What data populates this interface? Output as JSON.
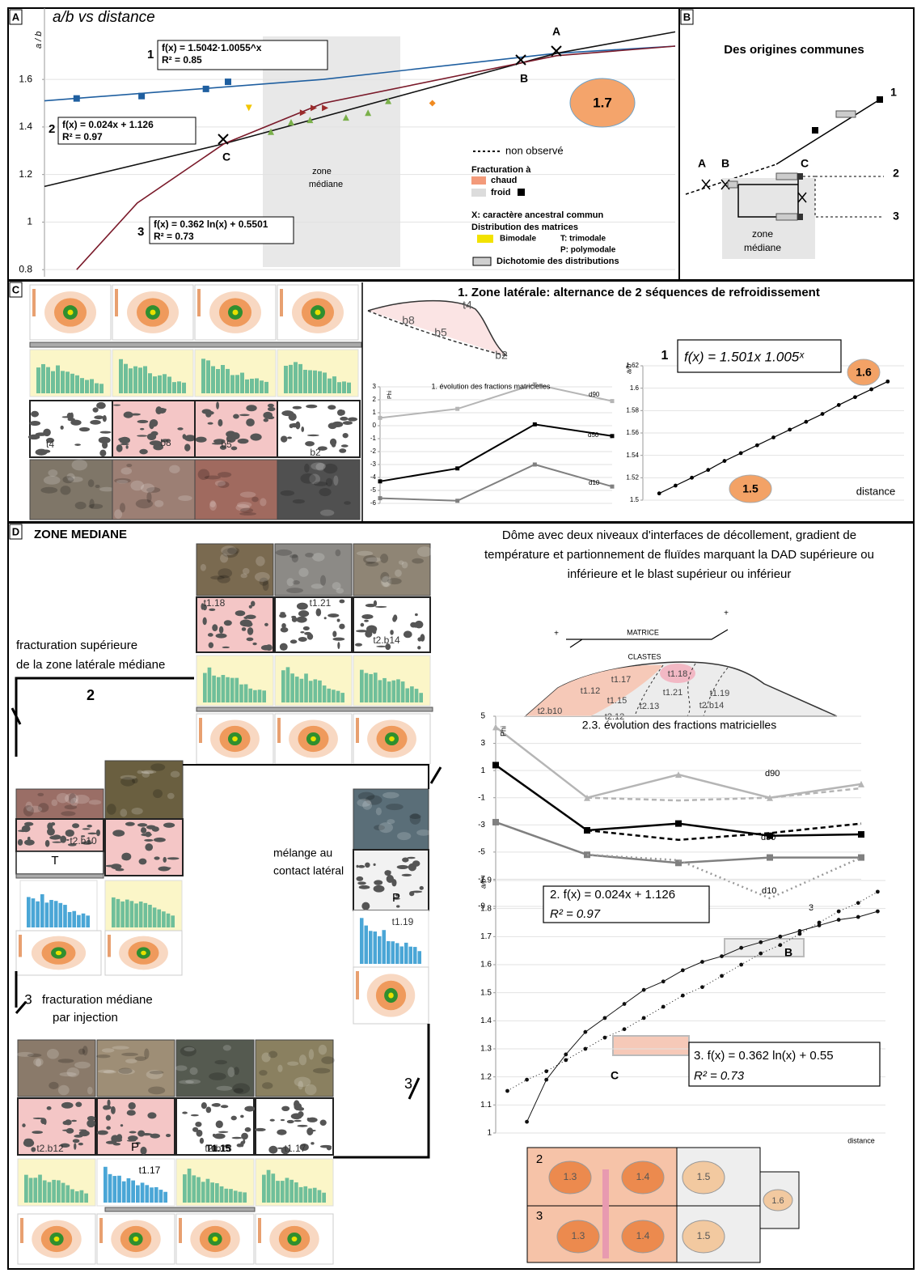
{
  "panel_a": {
    "letter": "A",
    "title": "a/b vs distance",
    "y_label": "a / b",
    "fits": [
      {
        "number": "1",
        "equation": "f(x) = 1.5042·1.0055^x",
        "r2": "R² = 0.85"
      },
      {
        "number": "2",
        "equation": "f(x) = 0.024x + 1.126",
        "r2": "R² = 0.97"
      },
      {
        "number": "3",
        "equation": "f(x) = 0.362 ln(x) + 0.5501",
        "r2": "R² = 0.73"
      }
    ],
    "points": [
      "A",
      "B",
      "C"
    ],
    "zone": [
      "zone",
      "médiane"
    ],
    "clast_value": "1.7",
    "legend": {
      "unobserved": "non observé",
      "fracturation": "Fracturation à",
      "hot": "chaud",
      "cold": "froid",
      "ancestral": "X: caractère ancestral commun",
      "distribution": "Distribution des matrices",
      "bimodal": "Bimodale",
      "trimodal": "T: trimodale",
      "polymodal": "P: polymodale",
      "dichotomy": "Dichotomie des distributions"
    },
    "chart": {
      "type": "scatter",
      "xlim": [
        0,
        100
      ],
      "ylim": [
        0.77,
        1.9
      ],
      "yticks": [
        0.8,
        1,
        1.2,
        1.4,
        1.6
      ],
      "grid": true,
      "series": [
        {
          "color": "#1f5fa0",
          "line": true,
          "x": [
            0,
            44.2,
            81.2,
            100
          ],
          "values": [
            1.51,
            1.6,
            1.71,
            1.74
          ]
        },
        {
          "color": "#111111",
          "line": true,
          "x": [
            0,
            28.5,
            81.2,
            100
          ],
          "values": [
            1.15,
            1.33,
            1.71,
            1.8
          ]
        },
        {
          "color": "#7a1a2a",
          "line": true,
          "x": [
            5.1,
            14.7,
            28.5,
            44.2,
            81.2,
            100
          ],
          "values": [
            0.8,
            1.08,
            1.33,
            1.5,
            1.7,
            1.74
          ]
        },
        {
          "color": "#1f5fa0",
          "marker": "square",
          "x": [
            5.1,
            15.4,
            25.6,
            29.1
          ],
          "values": [
            1.52,
            1.53,
            1.56,
            1.59
          ]
        },
        {
          "color": "#9b2b2b",
          "marker": "triangle-right",
          "x": [
            41.0,
            42.7,
            44.5
          ],
          "values": [
            1.46,
            1.48,
            1.48
          ]
        },
        {
          "color": "#7ab04a",
          "marker": "triangle",
          "x": [
            35.9,
            39.1,
            42.1,
            47.8,
            51.3,
            54.5
          ],
          "values": [
            1.38,
            1.42,
            1.43,
            1.44,
            1.46,
            1.51
          ]
        },
        {
          "color": "#f2c500",
          "marker": "triangle-down",
          "x": [
            32.4
          ],
          "values": [
            1.48
          ]
        },
        {
          "color": "#f08a20",
          "marker": "diamond",
          "x": [
            61.5
          ],
          "values": [
            1.5
          ]
        }
      ]
    }
  },
  "panel_b": {
    "letter": "B",
    "title": "Des origines communes",
    "points": [
      "A",
      "B",
      "C"
    ],
    "branches": [
      "1",
      "2",
      "3"
    ],
    "zone": [
      "zone",
      "médiane"
    ]
  },
  "panel_c": {
    "letter": "C",
    "title": "1. Zone latérale: alternance de 2 séquences de refroidissement",
    "samples": [
      "t4",
      "b8",
      "b5",
      "b2"
    ],
    "sketch_labels": [
      "t4",
      "b8",
      "b5",
      "b2"
    ],
    "fractions_chart": {
      "type": "line",
      "title": "1. évolution des fractions matricielles",
      "y_label": "Phi",
      "categories": [
        null,
        null,
        null,
        null
      ],
      "ylim": [
        -6,
        3
      ],
      "yticks": [
        3,
        2,
        1,
        0,
        -1,
        -2,
        -3,
        -4,
        -5,
        -6
      ],
      "grid": true,
      "series": [
        {
          "name": "d90",
          "color": "#b5b5b5",
          "marker": "square",
          "values": [
            0.6,
            1.3,
            3.2,
            1.9
          ]
        },
        {
          "name": "d50",
          "color": "#000000",
          "marker": "square",
          "values": [
            -4.3,
            -3.3,
            0.1,
            -0.8
          ]
        },
        {
          "name": "d10",
          "color": "#808080",
          "marker": "square",
          "values": [
            -5.6,
            -5.8,
            -3.0,
            -4.7
          ]
        }
      ]
    },
    "ratio_chart": {
      "type": "line",
      "number": "1",
      "equation": "f(x) = 1.501x 1.005ˣ",
      "y_label": "a/b",
      "x_label": "distance",
      "xlim": [
        0,
        16
      ],
      "ylim": [
        1.5,
        1.62
      ],
      "yticks": [
        1.5,
        1.52,
        1.54,
        1.56,
        1.58,
        1.6,
        1.62
      ],
      "grid": true,
      "series": [
        {
          "color": "#000000",
          "marker": "dot",
          "line": true,
          "x": [
            1,
            2,
            3,
            4,
            5,
            6,
            7,
            8,
            9,
            10,
            11,
            12,
            13,
            14,
            15
          ],
          "values": [
            1.506,
            1.513,
            1.52,
            1.527,
            1.535,
            1.542,
            1.549,
            1.556,
            1.563,
            1.57,
            1.577,
            1.585,
            1.592,
            1.599,
            1.606
          ]
        }
      ]
    },
    "clast_values": [
      "1.6",
      "1.5"
    ]
  },
  "panel_d": {
    "letter": "D",
    "title": "ZONE MEDIANE",
    "description": [
      "Dôme avec deux niveaux d'interfaces de décollement, gradient de",
      "température et partionnement de fluïdes marquant la DAD supérieure ou",
      "inférieure et le blast supérieur ou inférieur"
    ],
    "upper_fracturing": [
      "fracturation supérieure",
      "de la zone latérale médiane"
    ],
    "branch_2": "2",
    "branch_3": "3",
    "median_fracturing": {
      "number": "3",
      "text": [
        "fracturation médiane",
        "par injection"
      ]
    },
    "mixing": [
      "mélange au",
      "contact latéral"
    ],
    "distribution_labels": [
      "T",
      "P",
      "P"
    ],
    "samples": [
      "t1.18",
      "t1.21",
      "t2.b14",
      "t2.b10",
      "t1.19",
      "t2.b12",
      "T1.15",
      "t2.b13",
      "t1.17"
    ],
    "dome": {
      "matrix": "MATRICE",
      "clasts": "CLASTES",
      "signs": [
        "+",
        "+"
      ],
      "labels": [
        "t1.17",
        "t1.18",
        "t1.12",
        "t1.15",
        "t1.21",
        "t1.19",
        "t2.13",
        "t2.b14",
        "t2.b10",
        "t2.12"
      ]
    },
    "fractions_chart": {
      "type": "line",
      "title": "2.3. évolution des fractions matricielles",
      "y_label": "Phi",
      "categories": [
        null,
        null,
        null,
        null,
        null
      ],
      "ylim": [
        -9,
        5
      ],
      "yticks": [
        5,
        3,
        1,
        -1,
        -3,
        -5,
        -7,
        -9
      ],
      "grid": true,
      "series": [
        {
          "name": "d90",
          "color": "#b5b5b5",
          "marker": "triangle",
          "values": [
            4.2,
            -1.0,
            0.7,
            -1.0,
            0.0
          ]
        },
        {
          "color": "#b5b5b5",
          "dash": "6,4",
          "values": [
            null,
            -1.0,
            -1.2,
            -1.0,
            -0.3
          ]
        },
        {
          "name": "d50",
          "color": "#000000",
          "marker": "square",
          "values": [
            1.4,
            -3.4,
            -2.9,
            -3.8,
            -3.7
          ]
        },
        {
          "color": "#000000",
          "dash": "6,4",
          "values": [
            null,
            -3.4,
            -4.1,
            -3.6,
            -2.9
          ]
        },
        {
          "name": "d10",
          "color": "#808080",
          "marker": "square",
          "values": [
            -2.8,
            -5.2,
            -5.8,
            -5.4,
            -5.4
          ]
        },
        {
          "name": "3",
          "color": "#999999",
          "dash": "2,4",
          "values": [
            null,
            -5.2,
            -5.6,
            -8.4,
            -5.4
          ]
        }
      ]
    },
    "ratio_chart": {
      "type": "scatter",
      "y_label": "a/b",
      "x_label": "distance",
      "equations": [
        {
          "text": "2. f(x) = 0.024x + 1.126",
          "r2": "R² = 0.97"
        },
        {
          "text": "3. f(x) = 0.362 ln(x) + 0.55",
          "r2": "R² = 0.73"
        }
      ],
      "points": [
        "B",
        "C"
      ],
      "xlim": [
        0,
        100
      ],
      "ylim": [
        1,
        1.9
      ],
      "yticks": [
        1,
        1.1,
        1.2,
        1.3,
        1.4,
        1.5,
        1.6,
        1.7,
        1.8,
        1.9
      ],
      "grid": true,
      "series": [
        {
          "color": "#111111",
          "marker": "dot",
          "dash": "1,3",
          "line": true,
          "x": [
            3,
            8,
            13,
            18,
            23,
            28,
            33,
            38,
            43,
            48,
            53,
            58,
            63,
            68,
            73,
            78,
            83,
            88,
            93,
            98
          ],
          "values": [
            1.15,
            1.19,
            1.22,
            1.26,
            1.3,
            1.34,
            1.37,
            1.41,
            1.45,
            1.49,
            1.52,
            1.56,
            1.6,
            1.64,
            1.67,
            1.71,
            1.75,
            1.79,
            1.82,
            1.86
          ]
        },
        {
          "color": "#111111",
          "marker": "dot",
          "line": true,
          "x": [
            8,
            13,
            18,
            23,
            28,
            33,
            38,
            43,
            48,
            53,
            58,
            63,
            68,
            73,
            78,
            83,
            88,
            93,
            98
          ],
          "values": [
            1.04,
            1.19,
            1.28,
            1.36,
            1.41,
            1.46,
            1.51,
            1.54,
            1.58,
            1.61,
            1.63,
            1.66,
            1.68,
            1.7,
            1.72,
            1.74,
            1.76,
            1.77,
            1.79
          ]
        }
      ]
    },
    "clast_grid": {
      "rows": [
        "2",
        "3"
      ],
      "values": [
        [
          "1.3",
          "1.4",
          "1.5"
        ],
        [
          "1.3",
          "1.4",
          "1.5"
        ]
      ],
      "extra": "1.6"
    }
  }
}
